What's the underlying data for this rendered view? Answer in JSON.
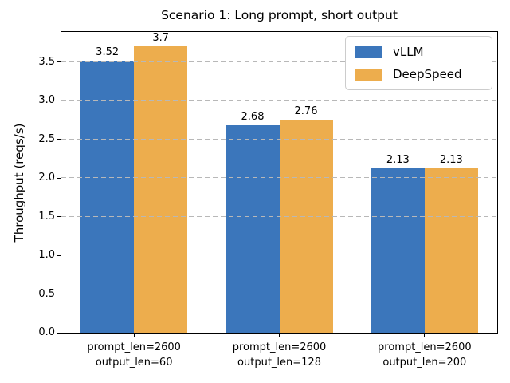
{
  "chart_data": {
    "type": "bar",
    "title": "Scenario 1: Long prompt, short output",
    "ylabel": "Throughput (reqs/s)",
    "xlabel": "",
    "categories": [
      [
        "prompt_len=2600",
        "output_len=60"
      ],
      [
        "prompt_len=2600",
        "output_len=128"
      ],
      [
        "prompt_len=2600",
        "output_len=200"
      ]
    ],
    "series": [
      {
        "name": "vLLM",
        "color": "#3b76bb",
        "values": [
          3.52,
          2.68,
          2.13
        ],
        "value_labels": [
          "3.52",
          "2.68",
          "2.13"
        ]
      },
      {
        "name": "DeepSpeed",
        "color": "#edad4d",
        "values": [
          3.7,
          2.76,
          2.13
        ],
        "value_labels": [
          "3.7",
          "2.76",
          "2.13"
        ]
      }
    ],
    "yticks": [
      0.0,
      0.5,
      1.0,
      1.5,
      2.0,
      2.5,
      3.0,
      3.5
    ],
    "ytick_labels": [
      "0.0",
      "0.5",
      "1.0",
      "1.5",
      "2.0",
      "2.5",
      "3.0",
      "3.5"
    ],
    "ylim": [
      0,
      3.89
    ],
    "grid": {
      "axis": "y",
      "style": "dashed",
      "color": "#b8b8b8"
    },
    "legend": {
      "position": "upper right"
    }
  }
}
